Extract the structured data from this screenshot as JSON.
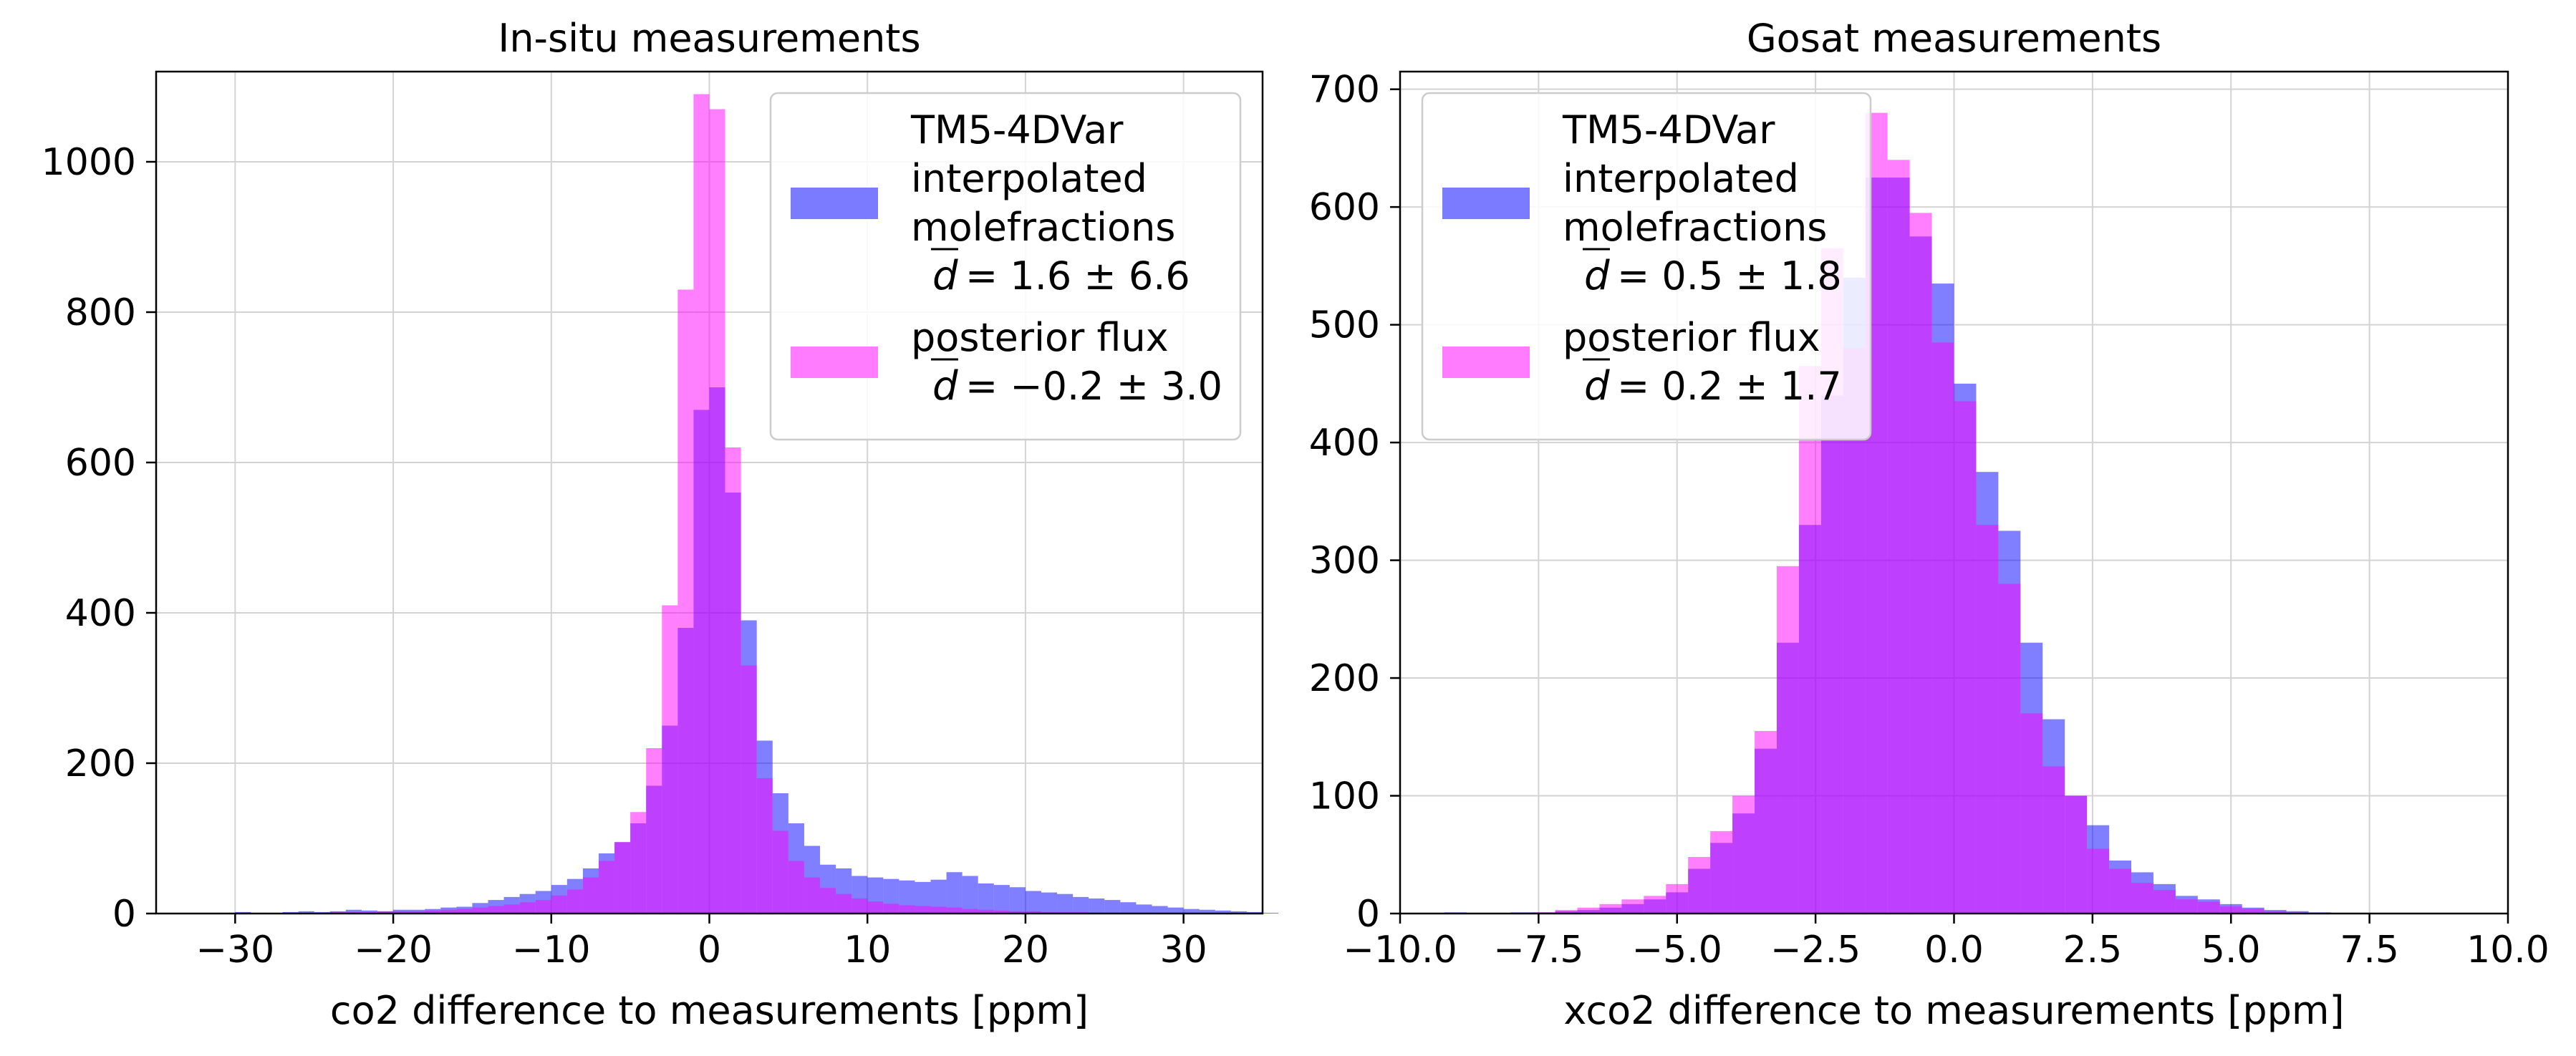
{
  "colors": {
    "model": "#7b7bff",
    "posterior": "#ff7bff",
    "overlap": "#bd3dff",
    "grid": "#d3d3d3"
  },
  "chart_data": [
    {
      "type": "bar",
      "title": "In-situ measurements",
      "xlabel": "co2 difference to measurements [ppm]",
      "ylabel": "",
      "xlim": [
        -35,
        35
      ],
      "ylim": [
        0,
        1120
      ],
      "xticks": [
        -30,
        -20,
        -10,
        0,
        10,
        20,
        30
      ],
      "xtick_labels": [
        "−30",
        "−20",
        "−10",
        "0",
        "10",
        "20",
        "30"
      ],
      "yticks": [
        0,
        200,
        400,
        600,
        800,
        1000
      ],
      "ytick_labels": [
        "0",
        "200",
        "400",
        "600",
        "800",
        "1000"
      ],
      "grid": true,
      "legend_position": "top-right",
      "bin_width": 1,
      "bin_edges_start": -33,
      "series": [
        {
          "legend_lines": [
            "TM5-4DVar",
            "interpolated",
            "molefractions"
          ],
          "legend_stat": "= 1.6 ± 6.6",
          "values": [
            0,
            0,
            1,
            2,
            1,
            0,
            2,
            3,
            2,
            3,
            5,
            4,
            3,
            5,
            5,
            6,
            8,
            9,
            14,
            18,
            22,
            26,
            30,
            38,
            46,
            60,
            80,
            95,
            120,
            170,
            250,
            380,
            670,
            700,
            560,
            390,
            230,
            160,
            120,
            90,
            65,
            60,
            50,
            48,
            46,
            44,
            42,
            45,
            55,
            50,
            40,
            38,
            35,
            30,
            28,
            26,
            22,
            20,
            18,
            15,
            12,
            10,
            8,
            6,
            5,
            4,
            3,
            2,
            1,
            0
          ]
        },
        {
          "legend_lines": [
            "posterior flux"
          ],
          "legend_stat": "= −0.2 ± 3.0",
          "values": [
            0,
            0,
            0,
            1,
            1,
            0,
            0,
            1,
            1,
            2,
            2,
            2,
            3,
            3,
            3,
            4,
            5,
            6,
            8,
            10,
            12,
            15,
            18,
            24,
            32,
            48,
            70,
            95,
            135,
            220,
            410,
            830,
            1090,
            1070,
            620,
            330,
            180,
            110,
            70,
            48,
            34,
            26,
            20,
            16,
            13,
            11,
            10,
            9,
            8,
            6,
            5,
            4,
            3,
            3,
            2,
            2,
            2,
            1,
            1,
            1,
            1,
            1,
            0,
            0,
            0,
            0,
            0,
            0,
            0,
            0
          ]
        }
      ]
    },
    {
      "type": "bar",
      "title": "Gosat measurements",
      "xlabel": "xco2 difference to measurements [ppm]",
      "ylabel": "",
      "xlim": [
        -10,
        10
      ],
      "ylim": [
        0,
        715
      ],
      "xticks": [
        -10,
        -7.5,
        -5,
        -2.5,
        0,
        2.5,
        5,
        7.5,
        10
      ],
      "xtick_labels": [
        "−10.0",
        "−7.5",
        "−5.0",
        "−2.5",
        "0.0",
        "2.5",
        "5.0",
        "7.5",
        "10.0"
      ],
      "yticks": [
        0,
        100,
        200,
        300,
        400,
        500,
        600,
        700
      ],
      "ytick_labels": [
        "0",
        "100",
        "200",
        "300",
        "400",
        "500",
        "600",
        "700"
      ],
      "grid": true,
      "legend_position": "top-left",
      "bin_width": 0.4,
      "bin_edges_start": -9.2,
      "series": [
        {
          "legend_lines": [
            "TM5-4DVar",
            "interpolated",
            "molefractions"
          ],
          "legend_stat": "= 0.5 ± 1.8",
          "values": [
            1,
            0,
            0,
            1,
            1,
            2,
            3,
            5,
            8,
            12,
            18,
            38,
            60,
            85,
            140,
            230,
            330,
            440,
            540,
            625,
            625,
            575,
            535,
            450,
            375,
            325,
            230,
            165,
            100,
            75,
            45,
            35,
            25,
            15,
            12,
            8,
            5,
            3,
            2,
            1
          ]
        },
        {
          "legend_lines": [
            "posterior flux"
          ],
          "legend_stat": "= 0.2 ± 1.7",
          "values": [
            0,
            0,
            0,
            0,
            1,
            3,
            5,
            8,
            12,
            15,
            25,
            48,
            70,
            100,
            155,
            295,
            465,
            565,
            480,
            680,
            640,
            595,
            485,
            435,
            330,
            280,
            170,
            125,
            100,
            55,
            38,
            26,
            20,
            12,
            10,
            6,
            4,
            2,
            1,
            0
          ]
        }
      ]
    }
  ]
}
